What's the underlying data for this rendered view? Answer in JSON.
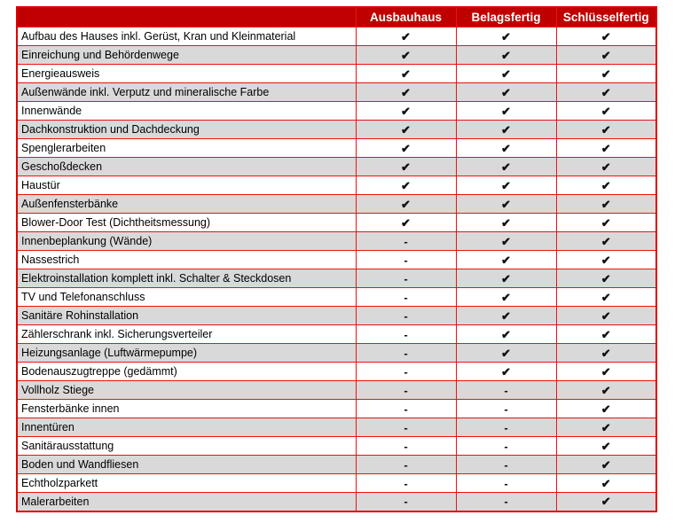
{
  "table": {
    "corner_label": "",
    "columns": [
      "Ausbauhaus",
      "Belagsfertig",
      "Schlüsselfertig"
    ],
    "check_symbol": "✔",
    "dash_symbol": "-",
    "colors": {
      "header_bg": "#c00000",
      "header_text": "#ffffff",
      "border": "#ee1111",
      "row_alt_bg": "#d9d9d9",
      "row_bg": "#ffffff",
      "mark_text": "#111111"
    },
    "rows": [
      {
        "label": "Aufbau des Hauses inkl. Gerüst, Kran und Kleinmaterial",
        "values": [
          "✔",
          "✔",
          "✔"
        ]
      },
      {
        "label": "Einreichung und Behördenwege",
        "values": [
          "✔",
          "✔",
          "✔"
        ]
      },
      {
        "label": "Energieausweis",
        "values": [
          "✔",
          "✔",
          "✔"
        ]
      },
      {
        "label": "Außenwände inkl. Verputz und mineralische Farbe",
        "values": [
          "✔",
          "✔",
          "✔"
        ]
      },
      {
        "label": "Innenwände",
        "values": [
          "✔",
          "✔",
          "✔"
        ]
      },
      {
        "label": "Dachkonstruktion und Dachdeckung",
        "values": [
          "✔",
          "✔",
          "✔"
        ]
      },
      {
        "label": "Spenglerarbeiten",
        "values": [
          "✔",
          "✔",
          "✔"
        ]
      },
      {
        "label": "Geschoßdecken",
        "values": [
          "✔",
          "✔",
          "✔"
        ]
      },
      {
        "label": "Haustür",
        "values": [
          "✔",
          "✔",
          "✔"
        ]
      },
      {
        "label": "Außenfensterbänke",
        "values": [
          "✔",
          "✔",
          "✔"
        ]
      },
      {
        "label": "Blower-Door Test (Dichtheitsmessung)",
        "values": [
          "✔",
          "✔",
          "✔"
        ]
      },
      {
        "label": "Innenbeplankung (Wände)",
        "values": [
          "-",
          "✔",
          "✔"
        ]
      },
      {
        "label": "Nassestrich",
        "values": [
          "-",
          "✔",
          "✔"
        ]
      },
      {
        "label": "Elektroinstallation komplett inkl. Schalter & Steckdosen",
        "values": [
          "-",
          "✔",
          "✔"
        ]
      },
      {
        "label": "TV und Telefonanschluss",
        "values": [
          "-",
          "✔",
          "✔"
        ]
      },
      {
        "label": "Sanitäre Rohinstallation",
        "values": [
          "-",
          "✔",
          "✔"
        ]
      },
      {
        "label": "Zählerschrank inkl. Sicherungsverteiler",
        "values": [
          "-",
          "✔",
          "✔"
        ]
      },
      {
        "label": "Heizungsanlage (Luftwärmepumpe)",
        "values": [
          "-",
          "✔",
          "✔"
        ]
      },
      {
        "label": "Bodenauszugtreppe (gedämmt)",
        "values": [
          "-",
          "✔",
          "✔"
        ]
      },
      {
        "label": "Vollholz Stiege",
        "values": [
          "-",
          "-",
          "✔"
        ]
      },
      {
        "label": "Fensterbänke innen",
        "values": [
          "-",
          "-",
          "✔"
        ]
      },
      {
        "label": "Innentüren",
        "values": [
          "-",
          "-",
          "✔"
        ]
      },
      {
        "label": "Sanitärausstattung",
        "values": [
          "-",
          "-",
          "✔"
        ]
      },
      {
        "label": "Boden und Wandfliesen",
        "values": [
          "-",
          "-",
          "✔"
        ]
      },
      {
        "label": "Echtholzparkett",
        "values": [
          "-",
          "-",
          "✔"
        ]
      },
      {
        "label": "Malerarbeiten",
        "values": [
          "-",
          "-",
          "✔"
        ]
      }
    ]
  }
}
